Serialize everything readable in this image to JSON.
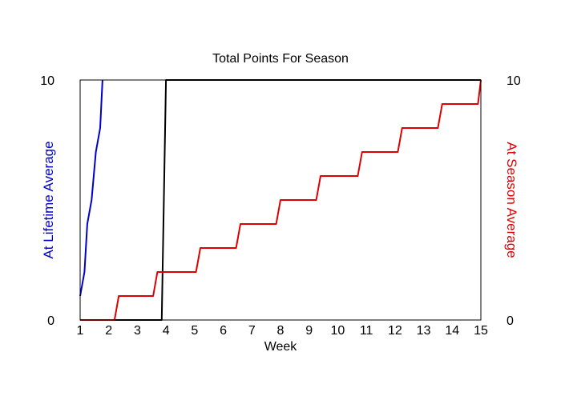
{
  "chart_data": {
    "type": "line",
    "title": "Total Points For Season",
    "xlabel": "Week",
    "ylabel_left": "At Lifetime Average",
    "ylabel_right": "At Season Average",
    "xlim": [
      1,
      15
    ],
    "ylim": [
      0,
      10
    ],
    "x_ticks": [
      "1",
      "2",
      "3",
      "4",
      "5",
      "6",
      "7",
      "8",
      "9",
      "10",
      "11",
      "12",
      "13",
      "14",
      "15"
    ],
    "y_ticks_left": [
      "0",
      "10"
    ],
    "y_ticks_right": [
      "0",
      "10"
    ],
    "grid": false,
    "series": [
      {
        "axis": "left",
        "color": "#0000cc",
        "points": [
          [
            1.0,
            1.0
          ],
          [
            1.15,
            2.0
          ],
          [
            1.25,
            4.0
          ],
          [
            1.4,
            5.0
          ],
          [
            1.55,
            7.0
          ],
          [
            1.7,
            8.0
          ],
          [
            1.78,
            10.0
          ]
        ]
      },
      {
        "axis": "none",
        "color": "#000000",
        "points": [
          [
            1.0,
            0.0
          ],
          [
            3.85,
            0.0
          ],
          [
            4.0,
            10.0
          ],
          [
            15.0,
            10.0
          ]
        ]
      },
      {
        "axis": "right",
        "color": "#dd0000",
        "points": [
          [
            1.0,
            0.0
          ],
          [
            2.2,
            0.0
          ],
          [
            2.35,
            1.0
          ],
          [
            3.55,
            1.0
          ],
          [
            3.7,
            2.0
          ],
          [
            5.05,
            2.0
          ],
          [
            5.2,
            3.0
          ],
          [
            6.45,
            3.0
          ],
          [
            6.6,
            4.0
          ],
          [
            7.85,
            4.0
          ],
          [
            8.0,
            5.0
          ],
          [
            9.25,
            5.0
          ],
          [
            9.4,
            6.0
          ],
          [
            10.7,
            6.0
          ],
          [
            10.85,
            7.0
          ],
          [
            12.1,
            7.0
          ],
          [
            12.25,
            8.0
          ],
          [
            13.5,
            8.0
          ],
          [
            13.65,
            9.0
          ],
          [
            14.9,
            9.0
          ],
          [
            15.0,
            10.0
          ]
        ]
      }
    ],
    "colors": {
      "left_axis_label": "#0000cc",
      "right_axis_label": "#dd0000"
    }
  }
}
